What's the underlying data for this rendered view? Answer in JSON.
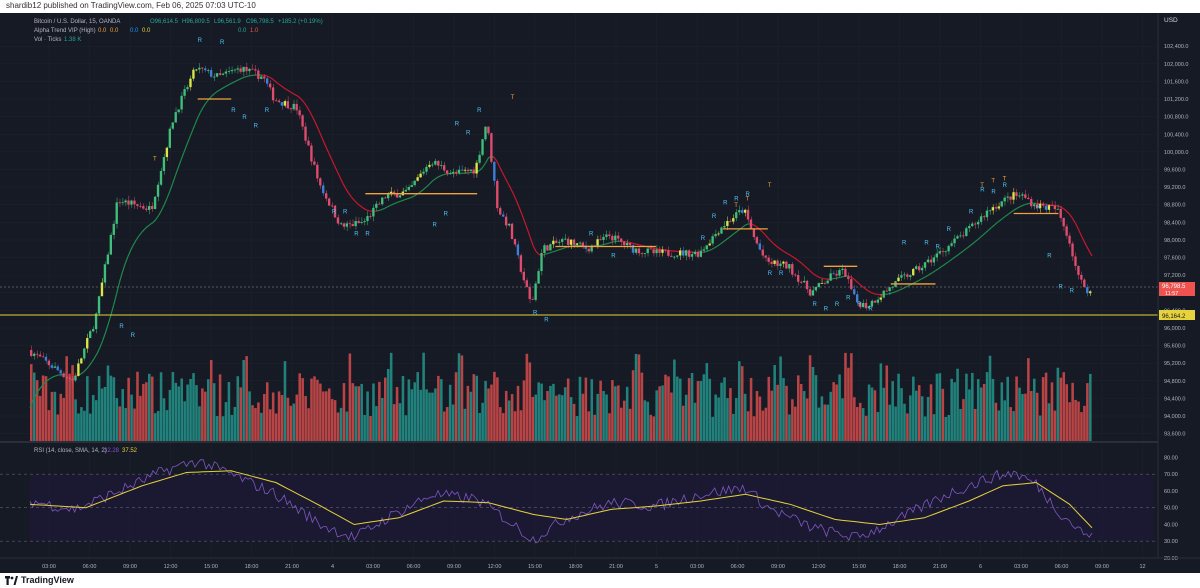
{
  "header": {
    "published": "shardib12 published on TradingView.com, Feb 06, 2025 07:03 UTC-10"
  },
  "footer": {
    "brand": "TradingView"
  },
  "legend": {
    "symbol_line": "Bitcoin / U.S. Dollar, 15, OANDA",
    "ohlc": {
      "o": "O96,614.5",
      "h": "H96,809.5",
      "l": "L96,561.9",
      "c": "C96,798.5",
      "chg": "+185.2 (+0.19%)"
    },
    "indicator_line": "Alpha Trend VIP (High)",
    "indicator_values": [
      "0.0",
      "0.0",
      "0.0",
      "0.0",
      "0.0",
      "1.0"
    ],
    "vol_line": "Vol · Ticks",
    "vol_value": "1.38 K"
  },
  "price_axis": {
    "currency": "USD",
    "labels": [
      "102,400.0",
      "102,000.0",
      "101,600.0",
      "101,200.0",
      "100,800.0",
      "100,400.0",
      "100,000.0",
      "99,600.0",
      "99,200.0",
      "98,800.0",
      "98,400.0",
      "98,000.0",
      "97,600.0",
      "97,200.0",
      "96,800.0",
      "96,400.0",
      "96,000.0",
      "95,600.0",
      "95,200.0",
      "94,800.0",
      "94,400.0",
      "94,000.0",
      "93,600.0"
    ],
    "current_price": "96,798.5",
    "countdown": "11:57",
    "support_price": "96,164.2"
  },
  "rsi_panel": {
    "legend": "RSI (14, close, SMA, 14, 2)",
    "rsi_value": "32.28",
    "ma_value": "37.52",
    "axis_labels": [
      "80.00",
      "70.00",
      "60.00",
      "50.00",
      "40.00",
      "30.00",
      "20.00"
    ]
  },
  "time_axis": {
    "labels": [
      "03:00",
      "06:00",
      "09:00",
      "12:00",
      "15:00",
      "18:00",
      "21:00",
      "4",
      "03:00",
      "06:00",
      "09:00",
      "12:00",
      "15:00",
      "18:00",
      "21:00",
      "5",
      "03:00",
      "06:00",
      "09:00",
      "12:00",
      "15:00",
      "18:00",
      "21:00",
      "6",
      "03:00",
      "06:00",
      "09:00",
      "12"
    ]
  },
  "colors": {
    "bg": "#161a25",
    "up": "#26a69a",
    "down": "#ef5350",
    "support": "#e6d23c",
    "trend_up": "#1f8a4c",
    "trend_down": "#c9182b",
    "rsi": "#7e57c2",
    "rsi_ma": "#e6d23c"
  },
  "chart_data": {
    "type": "candlestick",
    "interval": "15",
    "ylim": [
      93500,
      102700
    ],
    "price_path": [
      {
        "t": 0,
        "p": 95500
      },
      {
        "t": 4,
        "p": 94800
      },
      {
        "t": 6,
        "p": 96200
      },
      {
        "t": 8,
        "p": 98900
      },
      {
        "t": 11,
        "p": 98700
      },
      {
        "t": 13,
        "p": 100800
      },
      {
        "t": 15,
        "p": 101900
      },
      {
        "t": 17,
        "p": 101700
      },
      {
        "t": 19,
        "p": 101900
      },
      {
        "t": 21,
        "p": 101700
      },
      {
        "t": 22,
        "p": 101200
      },
      {
        "t": 24,
        "p": 101000
      },
      {
        "t": 26,
        "p": 99300
      },
      {
        "t": 28,
        "p": 98300
      },
      {
        "t": 30,
        "p": 98400
      },
      {
        "t": 32,
        "p": 99000
      },
      {
        "t": 34,
        "p": 99100
      },
      {
        "t": 36,
        "p": 99800
      },
      {
        "t": 38,
        "p": 99500
      },
      {
        "t": 40,
        "p": 99600
      },
      {
        "t": 41,
        "p": 100700
      },
      {
        "t": 42,
        "p": 98700
      },
      {
        "t": 43,
        "p": 98300
      },
      {
        "t": 45,
        "p": 96500
      },
      {
        "t": 46,
        "p": 97800
      },
      {
        "t": 48,
        "p": 98000
      },
      {
        "t": 50,
        "p": 97800
      },
      {
        "t": 52,
        "p": 98100
      },
      {
        "t": 54,
        "p": 97800
      },
      {
        "t": 56,
        "p": 97700
      },
      {
        "t": 58,
        "p": 97700
      },
      {
        "t": 60,
        "p": 97700
      },
      {
        "t": 62,
        "p": 98300
      },
      {
        "t": 64,
        "p": 98700
      },
      {
        "t": 65,
        "p": 98000
      },
      {
        "t": 66,
        "p": 97500
      },
      {
        "t": 68,
        "p": 97400
      },
      {
        "t": 70,
        "p": 96800
      },
      {
        "t": 72,
        "p": 97200
      },
      {
        "t": 73,
        "p": 97300
      },
      {
        "t": 74,
        "p": 96600
      },
      {
        "t": 75,
        "p": 96500
      },
      {
        "t": 76,
        "p": 96700
      },
      {
        "t": 78,
        "p": 97100
      },
      {
        "t": 80,
        "p": 97400
      },
      {
        "t": 82,
        "p": 97800
      },
      {
        "t": 84,
        "p": 98200
      },
      {
        "t": 86,
        "p": 98700
      },
      {
        "t": 88,
        "p": 99000
      },
      {
        "t": 89,
        "p": 99000
      },
      {
        "t": 90,
        "p": 98800
      },
      {
        "t": 92,
        "p": 98700
      },
      {
        "t": 93,
        "p": 98100
      },
      {
        "t": 94,
        "p": 97100
      },
      {
        "t": 95,
        "p": 96800
      }
    ],
    "t_end": 95,
    "alpha_trend": {
      "resistance_segments": [
        [
          15,
          18,
          101200
        ],
        [
          30,
          40,
          99050
        ],
        [
          47,
          56,
          97850
        ],
        [
          62,
          66,
          98250
        ],
        [
          71,
          74,
          97400
        ],
        [
          77,
          81,
          97000
        ],
        [
          88,
          92,
          98600
        ]
      ],
      "markers_R": [
        [
          8,
          96000
        ],
        [
          9,
          95800
        ],
        [
          15,
          102500
        ],
        [
          17,
          102450
        ],
        [
          18,
          100900
        ],
        [
          19,
          100750
        ],
        [
          20,
          100550
        ],
        [
          21,
          100900
        ],
        [
          27,
          98600
        ],
        [
          28,
          98600
        ],
        [
          29,
          98100
        ],
        [
          30,
          98100
        ],
        [
          36,
          98300
        ],
        [
          37,
          98550
        ],
        [
          38,
          100600
        ],
        [
          39,
          100400
        ],
        [
          40,
          100900
        ],
        [
          45,
          96300
        ],
        [
          46,
          96150
        ],
        [
          50,
          98100
        ],
        [
          52,
          97600
        ],
        [
          60,
          98000
        ],
        [
          61,
          98500
        ],
        [
          62,
          98800
        ],
        [
          63,
          98900
        ],
        [
          64,
          99000
        ],
        [
          66,
          97200
        ],
        [
          67,
          97200
        ],
        [
          70,
          96500
        ],
        [
          71,
          96400
        ],
        [
          72,
          96500
        ],
        [
          73,
          96650
        ],
        [
          74,
          96500
        ],
        [
          75,
          96400
        ],
        [
          78,
          97900
        ],
        [
          80,
          97900
        ],
        [
          81,
          97800
        ],
        [
          82,
          98200
        ],
        [
          84,
          98600
        ],
        [
          85,
          99100
        ],
        [
          86,
          99050
        ],
        [
          87,
          99200
        ],
        [
          90,
          98700
        ],
        [
          91,
          97600
        ],
        [
          92,
          96900
        ],
        [
          93,
          96800
        ]
      ],
      "markers_T": [
        [
          11,
          99800
        ],
        [
          43,
          101200
        ],
        [
          63,
          98750
        ],
        [
          64,
          98900
        ],
        [
          66,
          99200
        ],
        [
          85,
          99200
        ],
        [
          86,
          99300
        ],
        [
          87,
          99350
        ]
      ]
    },
    "volume": {
      "profile_note": "per-candle tick volume, relative"
    },
    "rsi": {
      "ylim": [
        20,
        85
      ],
      "bands": [
        30,
        50,
        70
      ],
      "rsi_path": [
        [
          0,
          54
        ],
        [
          4,
          49
        ],
        [
          8,
          60
        ],
        [
          12,
          72
        ],
        [
          15,
          78
        ],
        [
          18,
          70
        ],
        [
          22,
          58
        ],
        [
          26,
          40
        ],
        [
          29,
          32
        ],
        [
          32,
          44
        ],
        [
          36,
          58
        ],
        [
          40,
          55
        ],
        [
          42,
          46
        ],
        [
          45,
          31
        ],
        [
          48,
          44
        ],
        [
          52,
          53
        ],
        [
          56,
          51
        ],
        [
          60,
          58
        ],
        [
          64,
          62
        ],
        [
          66,
          50
        ],
        [
          70,
          38
        ],
        [
          74,
          32
        ],
        [
          78,
          44
        ],
        [
          82,
          58
        ],
        [
          86,
          68
        ],
        [
          88,
          71
        ],
        [
          90,
          64
        ],
        [
          92,
          48
        ],
        [
          94,
          36
        ],
        [
          95,
          32
        ]
      ],
      "ma_path": [
        [
          0,
          52
        ],
        [
          5,
          50
        ],
        [
          10,
          63
        ],
        [
          14,
          71
        ],
        [
          18,
          72
        ],
        [
          22,
          65
        ],
        [
          26,
          51
        ],
        [
          29,
          40
        ],
        [
          33,
          44
        ],
        [
          37,
          54
        ],
        [
          41,
          53
        ],
        [
          45,
          46
        ],
        [
          48,
          43
        ],
        [
          52,
          49
        ],
        [
          56,
          51
        ],
        [
          60,
          54
        ],
        [
          64,
          58
        ],
        [
          68,
          52
        ],
        [
          72,
          43
        ],
        [
          76,
          40
        ],
        [
          80,
          44
        ],
        [
          84,
          54
        ],
        [
          87,
          63
        ],
        [
          90,
          65
        ],
        [
          93,
          52
        ],
        [
          95,
          38
        ]
      ]
    }
  }
}
